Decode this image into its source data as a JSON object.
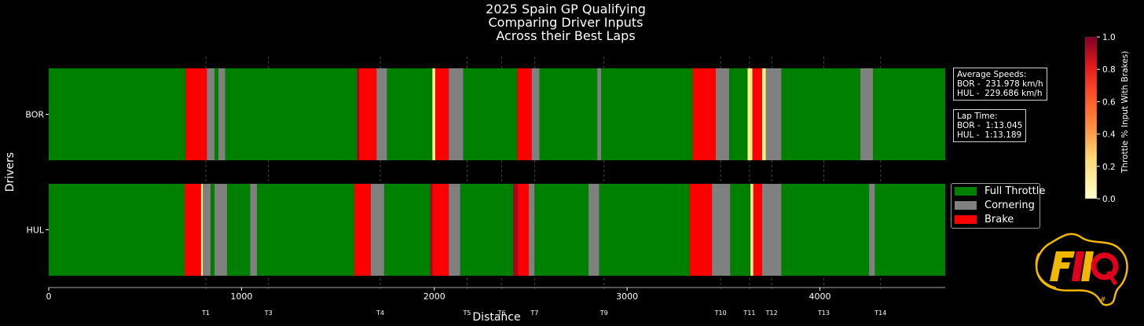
{
  "title": {
    "line1": "2025 Spain GP Qualifying",
    "line2": "Comparing Driver Inputs",
    "line3": "Across their Best Laps"
  },
  "info": {
    "speeds": "Average Speeds:\nBOR -  231.978 km/h\nHUL -  229.686 km/h",
    "laptimes": "Lap Time:\nBOR -  1:13.045\nHUL -  1:13.189"
  },
  "legend": [
    {
      "label": "Full Throttle",
      "color": "#008000"
    },
    {
      "label": "Cornering",
      "color": "#808080"
    },
    {
      "label": "Brake",
      "color": "#ff0000"
    }
  ],
  "colorbar": {
    "label": "Throttle % Input With Brakes)",
    "ticks": [
      "0.0",
      "0.2",
      "0.4",
      "0.6",
      "0.8",
      "1.0"
    ]
  },
  "chart_data": {
    "type": "bar",
    "orientation": "horizontal-segments",
    "xlabel": "Distance",
    "ylabel": "Drivers",
    "xlim": [
      0,
      4650
    ],
    "xticks": [
      0,
      1000,
      2000,
      3000,
      4000
    ],
    "categories": [
      "BOR",
      "HUL"
    ],
    "colors": {
      "full": "#008000",
      "corner": "#808080",
      "brake": "#ff0000",
      "partial": "#fff08f",
      "heavy_brake": "#b00020"
    },
    "corners": [
      {
        "label": "T1",
        "x": 815
      },
      {
        "label": "T3",
        "x": 1140
      },
      {
        "label": "T4",
        "x": 1720
      },
      {
        "label": "T5",
        "x": 2170
      },
      {
        "label": "T6",
        "x": 2350
      },
      {
        "label": "T7",
        "x": 2520
      },
      {
        "label": "T9",
        "x": 2880
      },
      {
        "label": "T10",
        "x": 3485
      },
      {
        "label": "T11",
        "x": 3635
      },
      {
        "label": "T12",
        "x": 3750
      },
      {
        "label": "T13",
        "x": 4020
      },
      {
        "label": "T14",
        "x": 4315
      }
    ],
    "series": [
      {
        "name": "BOR",
        "segments": [
          {
            "start": 0,
            "end": 710,
            "type": "full"
          },
          {
            "start": 710,
            "end": 820,
            "type": "brake"
          },
          {
            "start": 820,
            "end": 860,
            "type": "corner"
          },
          {
            "start": 860,
            "end": 880,
            "type": "full"
          },
          {
            "start": 880,
            "end": 915,
            "type": "corner"
          },
          {
            "start": 915,
            "end": 1600,
            "type": "full"
          },
          {
            "start": 1600,
            "end": 1610,
            "type": "heavy_brake"
          },
          {
            "start": 1610,
            "end": 1700,
            "type": "brake"
          },
          {
            "start": 1700,
            "end": 1755,
            "type": "corner"
          },
          {
            "start": 1755,
            "end": 1990,
            "type": "full"
          },
          {
            "start": 1990,
            "end": 2005,
            "type": "partial"
          },
          {
            "start": 2005,
            "end": 2075,
            "type": "brake"
          },
          {
            "start": 2075,
            "end": 2150,
            "type": "corner"
          },
          {
            "start": 2150,
            "end": 2430,
            "type": "full"
          },
          {
            "start": 2430,
            "end": 2505,
            "type": "brake"
          },
          {
            "start": 2505,
            "end": 2545,
            "type": "corner"
          },
          {
            "start": 2545,
            "end": 2845,
            "type": "full"
          },
          {
            "start": 2845,
            "end": 2865,
            "type": "corner"
          },
          {
            "start": 2865,
            "end": 3340,
            "type": "full"
          },
          {
            "start": 3340,
            "end": 3460,
            "type": "brake"
          },
          {
            "start": 3460,
            "end": 3530,
            "type": "corner"
          },
          {
            "start": 3530,
            "end": 3625,
            "type": "full"
          },
          {
            "start": 3625,
            "end": 3650,
            "type": "partial"
          },
          {
            "start": 3650,
            "end": 3700,
            "type": "brake"
          },
          {
            "start": 3700,
            "end": 3720,
            "type": "partial"
          },
          {
            "start": 3720,
            "end": 3800,
            "type": "corner"
          },
          {
            "start": 3800,
            "end": 4210,
            "type": "full"
          },
          {
            "start": 4210,
            "end": 4275,
            "type": "corner"
          },
          {
            "start": 4275,
            "end": 4650,
            "type": "full"
          }
        ]
      },
      {
        "name": "HUL",
        "segments": [
          {
            "start": 0,
            "end": 705,
            "type": "full"
          },
          {
            "start": 705,
            "end": 790,
            "type": "brake"
          },
          {
            "start": 790,
            "end": 800,
            "type": "partial"
          },
          {
            "start": 800,
            "end": 840,
            "type": "corner"
          },
          {
            "start": 840,
            "end": 860,
            "type": "full"
          },
          {
            "start": 860,
            "end": 925,
            "type": "corner"
          },
          {
            "start": 925,
            "end": 1045,
            "type": "full"
          },
          {
            "start": 1045,
            "end": 1080,
            "type": "corner"
          },
          {
            "start": 1080,
            "end": 1585,
            "type": "full"
          },
          {
            "start": 1585,
            "end": 1670,
            "type": "brake"
          },
          {
            "start": 1670,
            "end": 1740,
            "type": "corner"
          },
          {
            "start": 1740,
            "end": 1980,
            "type": "full"
          },
          {
            "start": 1980,
            "end": 1990,
            "type": "heavy_brake"
          },
          {
            "start": 1990,
            "end": 2075,
            "type": "brake"
          },
          {
            "start": 2075,
            "end": 2135,
            "type": "corner"
          },
          {
            "start": 2135,
            "end": 2410,
            "type": "full"
          },
          {
            "start": 2410,
            "end": 2435,
            "type": "heavy_brake"
          },
          {
            "start": 2435,
            "end": 2490,
            "type": "brake"
          },
          {
            "start": 2490,
            "end": 2520,
            "type": "corner"
          },
          {
            "start": 2520,
            "end": 2800,
            "type": "full"
          },
          {
            "start": 2800,
            "end": 2855,
            "type": "corner"
          },
          {
            "start": 2855,
            "end": 3325,
            "type": "full"
          },
          {
            "start": 3325,
            "end": 3440,
            "type": "brake"
          },
          {
            "start": 3440,
            "end": 3535,
            "type": "corner"
          },
          {
            "start": 3535,
            "end": 3640,
            "type": "full"
          },
          {
            "start": 3640,
            "end": 3655,
            "type": "partial"
          },
          {
            "start": 3655,
            "end": 3700,
            "type": "brake"
          },
          {
            "start": 3700,
            "end": 3800,
            "type": "corner"
          },
          {
            "start": 3800,
            "end": 4255,
            "type": "full"
          },
          {
            "start": 4255,
            "end": 4285,
            "type": "corner"
          },
          {
            "start": 4285,
            "end": 4650,
            "type": "full"
          }
        ]
      }
    ]
  }
}
